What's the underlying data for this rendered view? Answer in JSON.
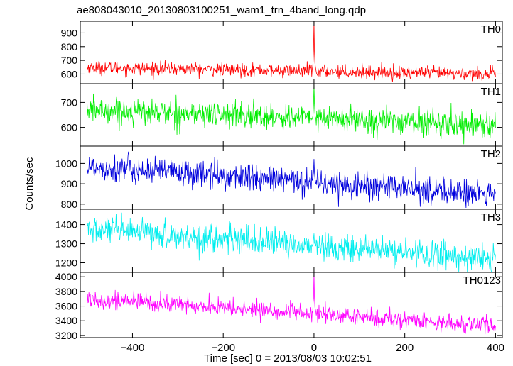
{
  "chart_data": {
    "type": "line",
    "title": "ae808043010_20130803100251_wam1_trn_4band_long.qdp",
    "xlabel": "Time [sec] 0 = 2013/08/03 10:02:51",
    "ylabel": "Counts/sec",
    "xlim": [
      -515,
      415
    ],
    "x_ticks": [
      -400,
      -200,
      0,
      200,
      400
    ],
    "x_tick_labels": [
      "−400",
      "−200",
      "0",
      "200",
      "400"
    ],
    "x_step": 1,
    "x_start": -500,
    "x_end": 400,
    "event_time": 0,
    "grid": false,
    "legend": "none",
    "panels": [
      {
        "name": "TH0",
        "color": "#ff0000",
        "ylim": [
          530,
          985
        ],
        "y_ticks": [
          600,
          700,
          800,
          900
        ],
        "baseline_start": 648,
        "baseline_end": 600,
        "noise_sd": 24,
        "spike_peak": 985
      },
      {
        "name": "TH1",
        "color": "#00ee00",
        "ylim": [
          525,
          775
        ],
        "y_ticks": [
          600,
          700
        ],
        "baseline_start": 670,
        "baseline_end": 610,
        "noise_sd": 26,
        "spike_peak": 775
      },
      {
        "name": "TH2",
        "color": "#0000dd",
        "ylim": [
          775,
          1085
        ],
        "y_ticks": [
          800,
          900,
          1000
        ],
        "baseline_start": 985,
        "baseline_end": 845,
        "noise_sd": 34,
        "spike_peak": 1030
      },
      {
        "name": "TH3",
        "color": "#00eeee",
        "ylim": [
          1150,
          1480
        ],
        "y_ticks": [
          1200,
          1300,
          1400
        ],
        "baseline_start": 1375,
        "baseline_end": 1220,
        "noise_sd": 36,
        "spike_peak": 1360
      },
      {
        "name": "TH0123",
        "color": "#ff00ff",
        "ylim": [
          3170,
          4060
        ],
        "y_ticks": [
          3200,
          3400,
          3600,
          3800,
          4000
        ],
        "baseline_start": 3700,
        "baseline_end": 3330,
        "noise_sd": 60,
        "spike_peak": 4060
      }
    ]
  }
}
